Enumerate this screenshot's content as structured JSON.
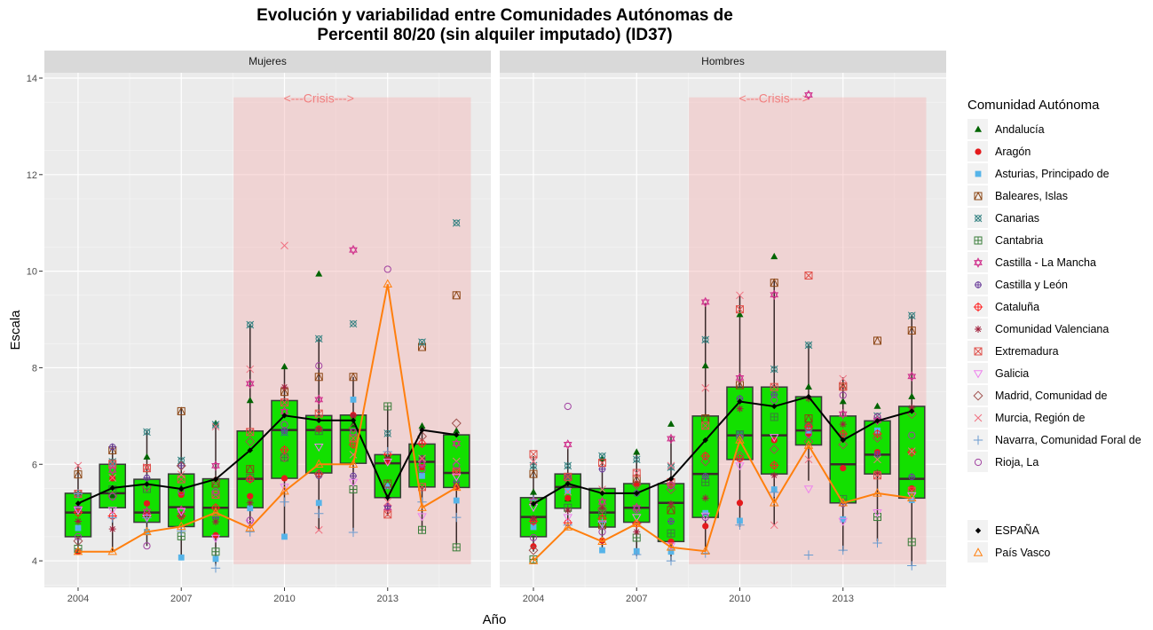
{
  "chart_data": {
    "type": "box+scatter+line",
    "title": [
      "Evolución y variabilidad entre Comunidades Autónomas de",
      "Percentil 80/20 (sin alquiler imputado) (ID37)"
    ],
    "xlabel": "Año",
    "ylabel": "Escala",
    "x_ticks": [
      2004,
      2007,
      2010,
      2013
    ],
    "y_ticks": [
      4,
      6,
      8,
      10,
      12,
      14
    ],
    "xlim": [
      2003.02,
      2016.0
    ],
    "ylim": [
      3.45,
      14.11
    ],
    "years": [
      2004,
      2005,
      2006,
      2007,
      2008,
      2009,
      2010,
      2011,
      2012,
      2013,
      2014,
      2015
    ],
    "crisis": {
      "label": "<---Crisis--->",
      "x_range": [
        2008.52,
        2015.42
      ],
      "y_range": [
        3.93,
        13.6
      ],
      "label_x": 2011,
      "label_y": 13.6
    },
    "legend_title": "Comunidad Autónoma",
    "panels": [
      {
        "name": "Mujeres",
        "boxes": [
          {
            "low": 4.19,
            "q1": 4.5,
            "median": 5.0,
            "q3": 5.4,
            "high": 6.0
          },
          {
            "low": 4.19,
            "q1": 5.1,
            "median": 5.4,
            "q3": 6.0,
            "high": 6.4
          },
          {
            "low": 4.31,
            "q1": 4.8,
            "median": 5.0,
            "q3": 5.69,
            "high": 6.7
          },
          {
            "low": 4.07,
            "q1": 4.71,
            "median": 5.11,
            "q3": 5.8,
            "high": 7.15
          },
          {
            "low": 3.9,
            "q1": 4.5,
            "median": 5.1,
            "q3": 5.7,
            "high": 6.9
          },
          {
            "low": 4.68,
            "q1": 5.1,
            "median": 5.7,
            "q3": 6.69,
            "high": 8.88
          },
          {
            "low": 4.5,
            "q1": 5.71,
            "median": 6.71,
            "q3": 7.32,
            "high": 8.02
          },
          {
            "low": 4.62,
            "q1": 5.82,
            "median": 6.71,
            "q3": 7.01,
            "high": 8.61
          },
          {
            "low": 4.62,
            "q1": 6.02,
            "median": 6.71,
            "q3": 7.02,
            "high": 7.81
          },
          {
            "low": 4.93,
            "q1": 5.31,
            "median": 6.02,
            "q3": 6.2,
            "high": 7.2
          },
          {
            "low": 4.62,
            "q1": 5.53,
            "median": 6.05,
            "q3": 6.42,
            "high": 6.72
          },
          {
            "low": 4.33,
            "q1": 5.52,
            "median": 5.82,
            "q3": 6.61,
            "high": 6.61
          }
        ],
        "lines": {
          "ESPAÑA": [
            5.19,
            5.51,
            5.59,
            5.49,
            5.69,
            6.29,
            7.01,
            6.91,
            6.91,
            5.31,
            6.71,
            6.61
          ],
          "País Vasco": [
            4.19,
            4.19,
            4.6,
            4.71,
            5.0,
            4.68,
            5.44,
            6.0,
            6.0,
            9.73,
            5.1,
            5.52
          ]
        },
        "points": {
          "Andalucía": [
            5.4,
            5.35,
            6.15,
            5.5,
            6.84,
            7.32,
            8.02,
            9.94,
            6.82,
            6.17,
            6.79,
            6.69
          ],
          "Aragón": [
            4.19,
            5.71,
            5.19,
            5.37,
            4.53,
            5.34,
            5.71,
            6.74,
            7.02,
            6.05,
            5.94,
            5.53
          ],
          "Asturias, Principado de": [
            4.68,
            5.97,
            4.6,
            4.07,
            4.04,
            5.09,
            4.5,
            5.2,
            7.34,
            5.55,
            5.76,
            5.25
          ],
          "Baleares, Islas": [
            5.79,
            6.29,
            5.92,
            7.1,
            5.6,
            5.9,
            7.5,
            7.81,
            7.81,
            5.6,
            8.43,
            9.5
          ],
          "Canarias": [
            5.37,
            6.05,
            6.67,
            6.08,
            6.82,
            8.89,
            6.66,
            8.6,
            8.91,
            6.64,
            8.53,
            11.0
          ],
          "Cantabria": [
            4.25,
            5.48,
            5.49,
            4.51,
            4.19,
            5.72,
            6.14,
            6.69,
            5.48,
            7.2,
            4.64,
            4.28
          ],
          "Castilla - La Mancha": [
            5.08,
            5.88,
            5.02,
            5.05,
            5.97,
            7.67,
            7.09,
            7.34,
            10.44,
            5.1,
            6.02,
            6.43
          ],
          "Castilla y León": [
            5.08,
            6.36,
            5.72,
            5.97,
            4.89,
            5.69,
            6.7,
            5.76,
            5.76,
            5.13,
            6.12,
            5.63
          ],
          "Cataluña": [
            5.0,
            4.93,
            4.93,
            4.93,
            5.1,
            5.69,
            6.3,
            5.8,
            6.41,
            6.2,
            6.43,
            5.85
          ],
          "Comunidad Valenciana": [
            4.82,
            4.66,
            4.93,
            4.93,
            4.81,
            5.2,
            7.6,
            6.72,
            7.0,
            6.12,
            6.12,
            5.56
          ],
          "Extremadura": [
            5.39,
            6.01,
            5.92,
            5.69,
            5.37,
            6.67,
            7.28,
            7.05,
            6.54,
            4.96,
            5.53,
            5.85
          ],
          "Galicia": [
            5.05,
            5.05,
            4.89,
            5.02,
            4.47,
            4.78,
            5.53,
            6.36,
            5.63,
            6.05,
            4.92,
            5.74
          ],
          "Madrid, Comunidad de": [
            4.41,
            5.34,
            5.53,
            5.97,
            5.66,
            6.47,
            6.14,
            5.8,
            6.75,
            5.44,
            6.58,
            6.85
          ],
          "Murcia, Región de": [
            5.97,
            5.72,
            5.94,
            5.79,
            6.78,
            7.97,
            10.53,
            4.64,
            6.2,
            5.22,
            6.12,
            6.06
          ],
          "Navarra, Comunidad Foral de": [
            5.39,
            4.89,
            4.89,
            4.62,
            3.85,
            4.6,
            5.22,
            4.98,
            4.59,
            6.26,
            5.22,
            4.9
          ],
          "Rioja, La": [
            4.5,
            5.33,
            4.31,
            5.43,
            5.43,
            4.84,
            6.82,
            8.04,
            6.67,
            10.04,
            5.89,
            5.98
          ]
        }
      },
      {
        "name": "Hombres",
        "boxes": [
          {
            "low": 4.19,
            "q1": 4.5,
            "median": 4.91,
            "q3": 5.31,
            "high": 6.17
          },
          {
            "low": 4.68,
            "q1": 5.09,
            "median": 5.53,
            "q3": 5.8,
            "high": 6.34
          },
          {
            "low": 4.2,
            "q1": 4.7,
            "median": 5.0,
            "q3": 5.5,
            "high": 6.18
          },
          {
            "low": 4.1,
            "q1": 4.8,
            "median": 5.1,
            "q3": 5.6,
            "high": 6.3
          },
          {
            "low": 4.0,
            "q1": 4.4,
            "median": 5.2,
            "q3": 5.6,
            "high": 6.58
          },
          {
            "low": 4.19,
            "q1": 4.9,
            "median": 5.8,
            "q3": 7.0,
            "high": 9.34
          },
          {
            "low": 4.7,
            "q1": 6.1,
            "median": 6.6,
            "q3": 7.6,
            "high": 9.5
          },
          {
            "low": 4.74,
            "q1": 5.8,
            "median": 6.6,
            "q3": 7.6,
            "high": 9.8
          },
          {
            "low": 5.66,
            "q1": 6.4,
            "median": 6.7,
            "q3": 7.4,
            "high": 8.5
          },
          {
            "low": 4.2,
            "q1": 5.2,
            "median": 6.0,
            "q3": 7.0,
            "high": 7.8
          },
          {
            "low": 4.4,
            "q1": 5.8,
            "median": 6.2,
            "q3": 6.9,
            "high": 6.95
          },
          {
            "low": 3.9,
            "q1": 5.3,
            "median": 5.7,
            "q3": 7.2,
            "high": 9.1
          }
        ],
        "lines": {
          "ESPAÑA": [
            5.18,
            5.6,
            5.4,
            5.4,
            5.7,
            6.5,
            7.3,
            7.2,
            7.4,
            6.5,
            6.9,
            7.1
          ],
          "País Vasco": [
            4.0,
            4.7,
            4.4,
            4.77,
            4.28,
            4.2,
            6.5,
            5.2,
            6.39,
            5.2,
            5.4,
            5.3
          ]
        },
        "points": {
          "Andalucía": [
            5.42,
            5.28,
            6.12,
            6.25,
            6.83,
            8.04,
            9.1,
            10.3,
            7.6,
            7.3,
            7.2,
            7.4
          ],
          "Aragón": [
            4.3,
            5.3,
            4.42,
            5.6,
            4.4,
            4.72,
            5.2,
            6.5,
            6.63,
            5.92,
            6.25,
            5.5
          ],
          "Asturias, Principado de": [
            4.7,
            5.45,
            4.22,
            4.2,
            4.19,
            4.99,
            4.83,
            5.48,
            6.7,
            4.86,
            6.7,
            5.26
          ],
          "Baleares, Islas": [
            5.8,
            5.74,
            4.74,
            5.7,
            5.05,
            6.95,
            7.64,
            9.76,
            6.95,
            7.61,
            8.56,
            8.77
          ],
          "Canarias": [
            5.97,
            5.97,
            6.17,
            6.1,
            5.94,
            8.58,
            6.63,
            7.97,
            8.47,
            6.58,
            7.0,
            9.08
          ],
          "Cantabria": [
            4.03,
            5.1,
            5.0,
            4.48,
            4.57,
            5.63,
            6.62,
            6.98,
            6.78,
            5.28,
            4.91,
            4.39
          ],
          "Castilla - La Mancha": [
            5.24,
            6.41,
            5.22,
            5.1,
            6.53,
            9.36,
            7.79,
            9.51,
            13.65,
            7.04,
            6.91,
            7.82
          ],
          "Castilla y León": [
            4.83,
            5.75,
            5.9,
            5.4,
            4.82,
            5.75,
            7.36,
            7.44,
            6.77,
            5.18,
            6.21,
            5.74
          ],
          "Cataluña": [
            4.82,
            4.79,
            4.88,
            4.77,
            5.57,
            6.17,
            6.12,
            5.98,
            6.78,
            6.63,
            6.63,
            6.25
          ],
          "Comunidad Valenciana": [
            4.88,
            5.05,
            5.1,
            4.6,
            5.18,
            5.3,
            7.15,
            5.77,
            7.36,
            6.83,
            5.82,
            7.17
          ],
          "Extremadura": [
            6.21,
            5.74,
            6.03,
            5.82,
            5.63,
            6.8,
            9.21,
            7.6,
            9.91,
            7.61,
            5.77,
            5.45
          ],
          "Galicia": [
            5.11,
            4.9,
            4.77,
            4.9,
            4.31,
            4.93,
            5.97,
            6.56,
            5.49,
            4.82,
            5.0,
            5.35
          ],
          "Madrid, Comunidad de": [
            4.22,
            5.69,
            5.08,
            5.58,
            5.48,
            6.06,
            6.18,
            6.31,
            6.47,
            6.41,
            6.55,
            7.04
          ],
          "Murcia, Región de": [
            6.06,
            5.43,
            5.48,
            5.82,
            5.97,
            7.58,
            9.5,
            4.74,
            6.1,
            7.77,
            6.1,
            6.27
          ],
          "Navarra, Comunidad Foral de": [
            5.26,
            4.74,
            4.8,
            4.13,
            4.0,
            4.16,
            4.74,
            5.42,
            4.12,
            4.22,
            4.37,
            3.9
          ],
          "Rioja, La": [
            4.48,
            7.2,
            4.6,
            5.06,
            5.56,
            4.9,
            6.55,
            7.33,
            6.63,
            7.43,
            6.98,
            6.6
          ]
        }
      }
    ],
    "legend": [
      {
        "label": "Andalucía",
        "shape": "tri-fill",
        "color": "#006400"
      },
      {
        "label": "Aragón",
        "shape": "circle-fill",
        "color": "#e41a1c"
      },
      {
        "label": "Asturias, Principado de",
        "shape": "square-fill",
        "color": "#56b4e9"
      },
      {
        "label": "Baleares, Islas",
        "shape": "square-tri",
        "color": "#8b4513"
      },
      {
        "label": "Canarias",
        "shape": "square-circle-x",
        "color": "#2f7f7f"
      },
      {
        "label": "Cantabria",
        "shape": "square-plus",
        "color": "#3a7d3a"
      },
      {
        "label": "Castilla - La Mancha",
        "shape": "star6",
        "color": "#d0308c"
      },
      {
        "label": "Castilla y León",
        "shape": "circle-plus-small",
        "color": "#6a3d9a"
      },
      {
        "label": "Cataluña",
        "shape": "circle-plus",
        "color": "#ff2020"
      },
      {
        "label": "Comunidad Valenciana",
        "shape": "asterisk",
        "color": "#a0203c"
      },
      {
        "label": "Extremadura",
        "shape": "square-x",
        "color": "#e0504a"
      },
      {
        "label": "Galicia",
        "shape": "tri-down",
        "color": "#ee82ee"
      },
      {
        "label": "Madrid, Comunidad de",
        "shape": "diamond",
        "color": "#a0524f"
      },
      {
        "label": "Murcia, Región de",
        "shape": "x",
        "color": "#f07080"
      },
      {
        "label": "Navarra, Comunidad Foral de",
        "shape": "plus",
        "color": "#6a9bd0"
      },
      {
        "label": "Rioja, La",
        "shape": "circle",
        "color": "#a040a0"
      }
    ],
    "legend_lines": [
      {
        "label": "ESPAÑA",
        "shape": "diamond-fill",
        "color": "#000000"
      },
      {
        "label": "País Vasco",
        "shape": "tri",
        "color": "#ff7f0e"
      }
    ],
    "colors": {
      "box_fill": "#13e000",
      "panel_bg": "#ebebeb",
      "strip_bg": "#d9d9d9",
      "crisis_fill": "#f4b6b6",
      "crisis_text": "#f08080"
    }
  }
}
